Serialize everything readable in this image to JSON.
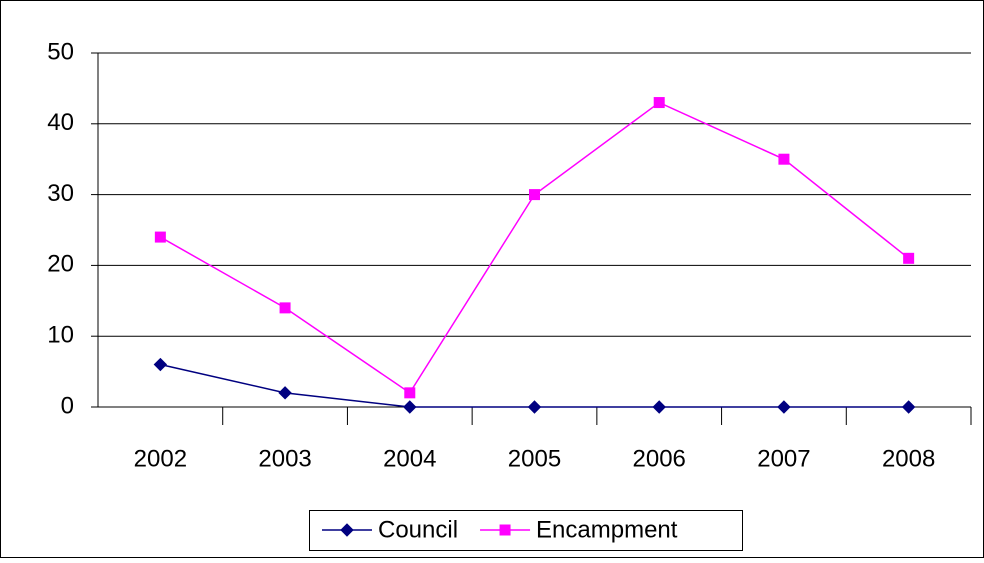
{
  "chart_data": {
    "type": "line",
    "categories": [
      "2002",
      "2003",
      "2004",
      "2005",
      "2006",
      "2007",
      "2008"
    ],
    "series": [
      {
        "name": "Council",
        "color": "#000080",
        "marker": "diamond",
        "values": [
          6,
          2,
          0,
          0,
          0,
          0,
          0
        ]
      },
      {
        "name": "Encampment",
        "color": "#ff00ff",
        "marker": "square",
        "values": [
          24,
          14,
          2,
          30,
          43,
          35,
          21
        ]
      }
    ],
    "ylim": [
      0,
      50
    ],
    "yticks": [
      0,
      10,
      20,
      30,
      40,
      50
    ],
    "grid": true,
    "legend": "bottom"
  }
}
